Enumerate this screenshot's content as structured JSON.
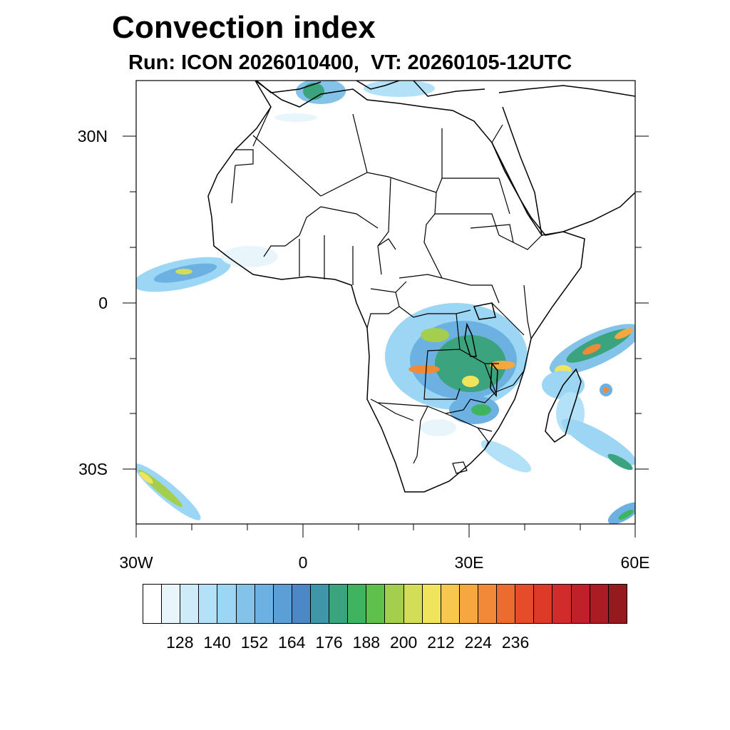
{
  "title": "Convection index",
  "subtitle": "Run: ICON 2026010400,  VT: 20260105-12UTC",
  "axes": {
    "lat_labels": [
      "30N",
      "0",
      "30S"
    ],
    "lon_labels": [
      "30W",
      "0",
      "30E",
      "60E"
    ],
    "lon_range": [
      -30,
      60
    ],
    "lat_range": [
      -40,
      40
    ]
  },
  "colorbar": {
    "colors": [
      "#ffffff",
      "#e8f6fc",
      "#cdebf9",
      "#b3e1f7",
      "#9bd7f5",
      "#83c3ea",
      "#6cb1e1",
      "#5b9fd6",
      "#4b88c5",
      "#3f96a8",
      "#3ba47f",
      "#3fb35f",
      "#5fc04b",
      "#a4cf4e",
      "#d3dd57",
      "#f0e45c",
      "#f8c84e",
      "#f6a73f",
      "#f18a37",
      "#ec6b2f",
      "#e54c2a",
      "#de3a28",
      "#d22b2b",
      "#c0202a",
      "#aa1b24",
      "#951a1e"
    ],
    "labels": [
      "128",
      "140",
      "152",
      "164",
      "176",
      "188",
      "200",
      "212",
      "224",
      "236"
    ]
  }
}
